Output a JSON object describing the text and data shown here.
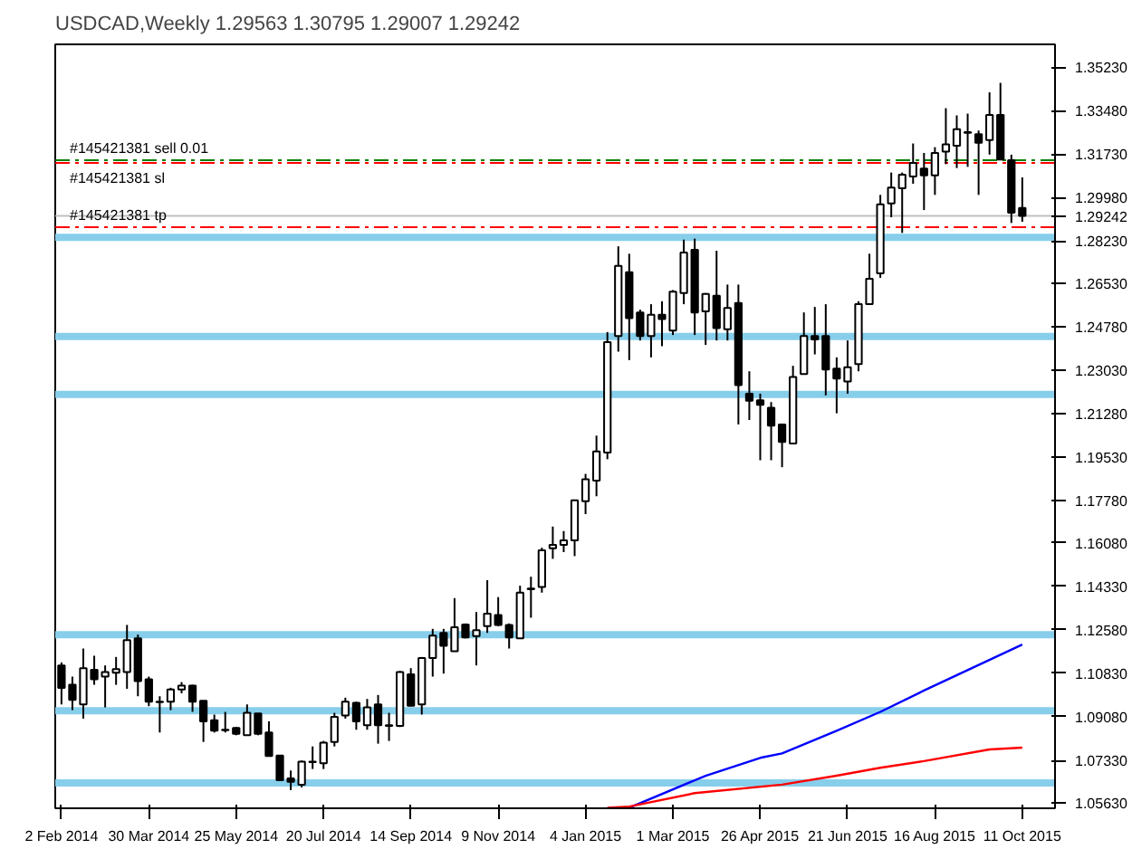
{
  "chart_data": {
    "type": "candlestick",
    "title": "USDCAD,Weekly  1.29563 1.30795 1.29007 1.29242",
    "x": [
      "2014-02-02",
      "2014-02-09",
      "2014-02-16",
      "2014-02-23",
      "2014-03-02",
      "2014-03-09",
      "2014-03-16",
      "2014-03-23",
      "2014-03-30",
      "2014-04-06",
      "2014-04-13",
      "2014-04-20",
      "2014-04-27",
      "2014-05-04",
      "2014-05-11",
      "2014-05-18",
      "2014-05-25",
      "2014-06-01",
      "2014-06-08",
      "2014-06-15",
      "2014-06-22",
      "2014-06-29",
      "2014-07-06",
      "2014-07-13",
      "2014-07-20",
      "2014-07-27",
      "2014-08-03",
      "2014-08-10",
      "2014-08-17",
      "2014-08-24",
      "2014-08-31",
      "2014-09-07",
      "2014-09-14",
      "2014-09-21",
      "2014-09-28",
      "2014-10-05",
      "2014-10-12",
      "2014-10-19",
      "2014-10-26",
      "2014-11-02",
      "2014-11-09",
      "2014-11-16",
      "2014-11-23",
      "2014-11-30",
      "2014-12-07",
      "2014-12-14",
      "2014-12-21",
      "2014-12-28",
      "2015-01-04",
      "2015-01-11",
      "2015-01-18",
      "2015-01-25",
      "2015-02-01",
      "2015-02-08",
      "2015-02-15",
      "2015-02-22",
      "2015-03-01",
      "2015-03-08",
      "2015-03-15",
      "2015-03-22",
      "2015-03-29",
      "2015-04-05",
      "2015-04-12",
      "2015-04-19",
      "2015-04-26",
      "2015-05-03",
      "2015-05-10",
      "2015-05-17",
      "2015-05-24",
      "2015-05-31",
      "2015-06-07",
      "2015-06-14",
      "2015-06-21",
      "2015-06-28",
      "2015-07-05",
      "2015-07-12",
      "2015-07-19",
      "2015-07-26",
      "2015-08-02",
      "2015-08-09",
      "2015-08-16",
      "2015-08-23",
      "2015-08-30",
      "2015-09-06",
      "2015-09-13",
      "2015-09-20",
      "2015-09-27",
      "2015-10-04",
      "2015-10-11"
    ],
    "ohlc": [
      [
        1.1115,
        1.1127,
        1.0958,
        1.1025
      ],
      [
        1.1037,
        1.107,
        1.0935,
        1.0976
      ],
      [
        1.0958,
        1.1183,
        1.0901,
        1.1104
      ],
      [
        1.1097,
        1.1154,
        1.1037,
        1.1059
      ],
      [
        1.107,
        1.1115,
        1.0946,
        1.1088
      ],
      [
        1.1086,
        1.1149,
        1.1037,
        1.11
      ],
      [
        1.1088,
        1.1278,
        1.1021,
        1.1217
      ],
      [
        1.1224,
        1.1239,
        1.0991,
        1.1052
      ],
      [
        1.1059,
        1.107,
        1.0951,
        1.0969
      ],
      [
        1.0969,
        1.0991,
        1.0845,
        1.0967
      ],
      [
        1.0969,
        1.1025,
        1.0935,
        1.1018
      ],
      [
        1.1018,
        1.1048,
        1.1003,
        1.1034
      ],
      [
        1.1034,
        1.1037,
        1.0928,
        1.0969
      ],
      [
        1.0973,
        1.0973,
        1.0807,
        1.089
      ],
      [
        1.0894,
        1.0917,
        1.0845,
        1.0852
      ],
      [
        1.0856,
        1.0928,
        1.0845,
        1.0854
      ],
      [
        1.0863,
        1.0867,
        1.0834,
        1.084
      ],
      [
        1.0834,
        1.0958,
        1.0834,
        1.0924
      ],
      [
        1.0922,
        1.0922,
        1.0834,
        1.084
      ],
      [
        1.0845,
        1.089,
        1.0748,
        1.075
      ],
      [
        1.0752,
        1.0755,
        1.0653,
        1.0653
      ],
      [
        1.066,
        1.0692,
        1.0613,
        1.0647
      ],
      [
        1.0635,
        1.0732,
        1.0624,
        1.0728
      ],
      [
        1.0728,
        1.0789,
        1.0698,
        1.0726
      ],
      [
        1.0721,
        1.0811,
        1.0698,
        1.0804
      ],
      [
        1.0807,
        1.0924,
        1.0789,
        1.0908
      ],
      [
        1.0913,
        1.0985,
        1.0901,
        1.0969
      ],
      [
        1.0964,
        1.0969,
        1.0856,
        1.089
      ],
      [
        1.0874,
        1.098,
        1.0856,
        1.0946
      ],
      [
        1.0958,
        1.0996,
        1.08,
        1.0874
      ],
      [
        1.0872,
        1.0924,
        1.0811,
        1.0874
      ],
      [
        1.0872,
        1.1093,
        1.0867,
        1.1088
      ],
      [
        1.1079,
        1.1104,
        1.0951,
        1.0953
      ],
      [
        1.0958,
        1.1149,
        1.0917,
        1.1145
      ],
      [
        1.1145,
        1.1262,
        1.107,
        1.1235
      ],
      [
        1.1246,
        1.1262,
        1.1082,
        1.1194
      ],
      [
        1.1172,
        1.1386,
        1.1172,
        1.1269
      ],
      [
        1.128,
        1.1284,
        1.1224,
        1.1228
      ],
      [
        1.1233,
        1.133,
        1.1115,
        1.1257
      ],
      [
        1.1273,
        1.1458,
        1.1246,
        1.1323
      ],
      [
        1.1318,
        1.139,
        1.1273,
        1.1278
      ],
      [
        1.1278,
        1.1284,
        1.1183,
        1.1228
      ],
      [
        1.1224,
        1.1436,
        1.1224,
        1.1408
      ],
      [
        1.1424,
        1.1472,
        1.1307,
        1.1422
      ],
      [
        1.1431,
        1.1589,
        1.1408,
        1.1578
      ],
      [
        1.1587,
        1.1674,
        1.1544,
        1.16
      ],
      [
        1.16,
        1.1656,
        1.1571,
        1.1618
      ],
      [
        1.1618,
        1.178,
        1.1555,
        1.178
      ],
      [
        1.1776,
        1.1886,
        1.1724,
        1.1864
      ],
      [
        1.1859,
        1.204,
        1.1796,
        1.1976
      ],
      [
        1.1972,
        1.2457,
        1.1945,
        1.2416
      ],
      [
        1.2441,
        1.2802,
        1.2378,
        1.2723
      ],
      [
        1.2698,
        1.2772,
        1.2344,
        1.2513
      ],
      [
        1.2536,
        1.2547,
        1.2423,
        1.2441
      ],
      [
        1.2441,
        1.2569,
        1.2355,
        1.2527
      ],
      [
        1.2527,
        1.2581,
        1.24,
        1.2509
      ],
      [
        1.2463,
        1.2626,
        1.2445,
        1.2619
      ],
      [
        1.2614,
        1.2829,
        1.2569,
        1.2777
      ],
      [
        1.2788,
        1.2833,
        1.2445,
        1.2536
      ],
      [
        1.254,
        1.2614,
        1.2405,
        1.261
      ],
      [
        1.2603,
        1.2784,
        1.2423,
        1.2473
      ],
      [
        1.2468,
        1.2648,
        1.2423,
        1.2554
      ],
      [
        1.2574,
        1.2648,
        1.2085,
        1.2243
      ],
      [
        1.2209,
        1.2299,
        1.2103,
        1.218
      ],
      [
        1.2182,
        1.2209,
        1.1941,
        1.2164
      ],
      [
        1.2152,
        1.2175,
        1.1941,
        1.208
      ],
      [
        1.2085,
        1.2085,
        1.1913,
        1.2015
      ],
      [
        1.2008,
        1.2321,
        1.2008,
        1.2276
      ],
      [
        1.2288,
        1.2536,
        1.2288,
        1.2441
      ],
      [
        1.2441,
        1.2558,
        1.2367,
        1.2427
      ],
      [
        1.2441,
        1.2569,
        1.2202,
        1.2306
      ],
      [
        1.231,
        1.2355,
        1.213,
        1.227
      ],
      [
        1.2258,
        1.2423,
        1.2209,
        1.2315
      ],
      [
        1.2328,
        1.2581,
        1.2299,
        1.2569
      ],
      [
        1.2569,
        1.2772,
        1.2569,
        1.2671
      ],
      [
        1.2693,
        1.3009,
        1.2675,
        1.2971
      ],
      [
        1.2975,
        1.3099,
        1.2919,
        1.3038
      ],
      [
        1.3036,
        1.3099,
        1.2856,
        1.309
      ],
      [
        1.3083,
        1.3216,
        1.3054,
        1.3138
      ],
      [
        1.3115,
        1.3178,
        1.2948,
        1.3088
      ],
      [
        1.3088,
        1.3201,
        1.3009,
        1.3178
      ],
      [
        1.3183,
        1.3358,
        1.3133,
        1.3212
      ],
      [
        1.3207,
        1.3329,
        1.3117,
        1.3273
      ],
      [
        1.3262,
        1.3336,
        1.3122,
        1.3259
      ],
      [
        1.3253,
        1.3268,
        1.3009,
        1.3219
      ],
      [
        1.323,
        1.3422,
        1.3171,
        1.3331
      ],
      [
        1.3331,
        1.346,
        1.3151,
        1.3151
      ],
      [
        1.3149,
        1.3171,
        1.2896,
        1.2937
      ],
      [
        1.29563,
        1.30795,
        1.29007,
        1.29242
      ]
    ],
    "series": [
      {
        "type": "line",
        "color": "#0000ff",
        "x": [
          "2015-02-01",
          "2015-03-22",
          "2015-04-26",
          "2015-05-10",
          "2015-06-14",
          "2015-07-12",
          "2015-08-09",
          "2015-10-11"
        ],
        "values": [
          1.0542,
          1.0671,
          1.0743,
          1.0761,
          1.0852,
          1.0928,
          1.1014,
          1.1199
        ]
      },
      {
        "type": "line",
        "color": "#ff0000",
        "x": [
          "2015-01-18",
          "2015-02-01",
          "2015-03-15",
          "2015-05-10",
          "2015-06-14",
          "2015-07-12",
          "2015-08-09",
          "2015-09-20",
          "2015-10-11"
        ],
        "values": [
          1.0542,
          1.0547,
          1.0601,
          1.0635,
          1.0671,
          1.0703,
          1.073,
          1.0777,
          1.0784
        ]
      }
    ],
    "ref_lines": [
      {
        "axis": "y",
        "value": 1.3149,
        "label": "#145421381 sell 0.01",
        "color": "#008000",
        "line_style": "dashed"
      },
      {
        "axis": "y",
        "value": 1.3138,
        "label": "#145421381 sl",
        "color": "#ff0000",
        "line_style": "dashed"
      },
      {
        "axis": "y",
        "value": 1.29242,
        "label": "1.29242",
        "color": "#c0c0c0",
        "line_style": "solid"
      },
      {
        "axis": "y",
        "value": 1.2879,
        "label": "#145421381 tp",
        "color": "#ff0000",
        "line_style": "dashed"
      },
      {
        "axis": "y",
        "value": 1.2838,
        "label": null,
        "color": "#87ceeb",
        "line_style": "solid"
      },
      {
        "axis": "y",
        "value": 1.2439,
        "label": null,
        "color": "#87ceeb",
        "line_style": "solid"
      },
      {
        "axis": "y",
        "value": 1.2206,
        "label": null,
        "color": "#87ceeb",
        "line_style": "solid"
      },
      {
        "axis": "y",
        "value": 1.1239,
        "label": null,
        "color": "#87ceeb",
        "line_style": "solid"
      },
      {
        "axis": "y",
        "value": 1.0933,
        "label": null,
        "color": "#87ceeb",
        "line_style": "solid"
      },
      {
        "axis": "y",
        "value": 1.0642,
        "label": null,
        "color": "#87ceeb",
        "line_style": "solid"
      }
    ],
    "xlim": [
      "2014-01-29",
      "2015-11-01"
    ],
    "xticks": [
      {
        "value": "2014-02-02",
        "label": "2 Feb 2014"
      },
      {
        "value": "2014-03-30",
        "label": "30 Mar 2014"
      },
      {
        "value": "2014-05-25",
        "label": "25 May 2014"
      },
      {
        "value": "2014-07-20",
        "label": "20 Jul 2014"
      },
      {
        "value": "2014-09-14",
        "label": "14 Sep 2014"
      },
      {
        "value": "2014-11-09",
        "label": "9 Nov 2014"
      },
      {
        "value": "2015-01-04",
        "label": "4 Jan 2015"
      },
      {
        "value": "2015-03-01",
        "label": "1 Mar 2015"
      },
      {
        "value": "2015-04-26",
        "label": "26 Apr 2015"
      },
      {
        "value": "2015-06-21",
        "label": "21 Jun 2015"
      },
      {
        "value": "2015-08-16",
        "label": "16 Aug 2015"
      },
      {
        "value": "2015-10-11",
        "label": "11 Oct 2015"
      }
    ],
    "ylim": [
      1.054,
      1.3615
    ],
    "yticks": [
      {
        "value": 1.3523,
        "label": "1.35230"
      },
      {
        "value": 1.3348,
        "label": "1.33480"
      },
      {
        "value": 1.3173,
        "label": "1.31730"
      },
      {
        "value": 1.2998,
        "label": "1.29980"
      },
      {
        "value": 1.2823,
        "label": "1.28230"
      },
      {
        "value": 1.2653,
        "label": "1.26530"
      },
      {
        "value": 1.2478,
        "label": "1.24780"
      },
      {
        "value": 1.2303,
        "label": "1.23030"
      },
      {
        "value": 1.2128,
        "label": "1.21280"
      },
      {
        "value": 1.1953,
        "label": "1.19530"
      },
      {
        "value": 1.1778,
        "label": "1.17780"
      },
      {
        "value": 1.1608,
        "label": "1.16080"
      },
      {
        "value": 1.1433,
        "label": "1.14330"
      },
      {
        "value": 1.1258,
        "label": "1.12580"
      },
      {
        "value": 1.1083,
        "label": "1.10830"
      },
      {
        "value": 1.0908,
        "label": "1.09080"
      },
      {
        "value": 1.0733,
        "label": "1.07330"
      },
      {
        "value": 1.0563,
        "label": "1.05630"
      }
    ],
    "grid": false
  }
}
